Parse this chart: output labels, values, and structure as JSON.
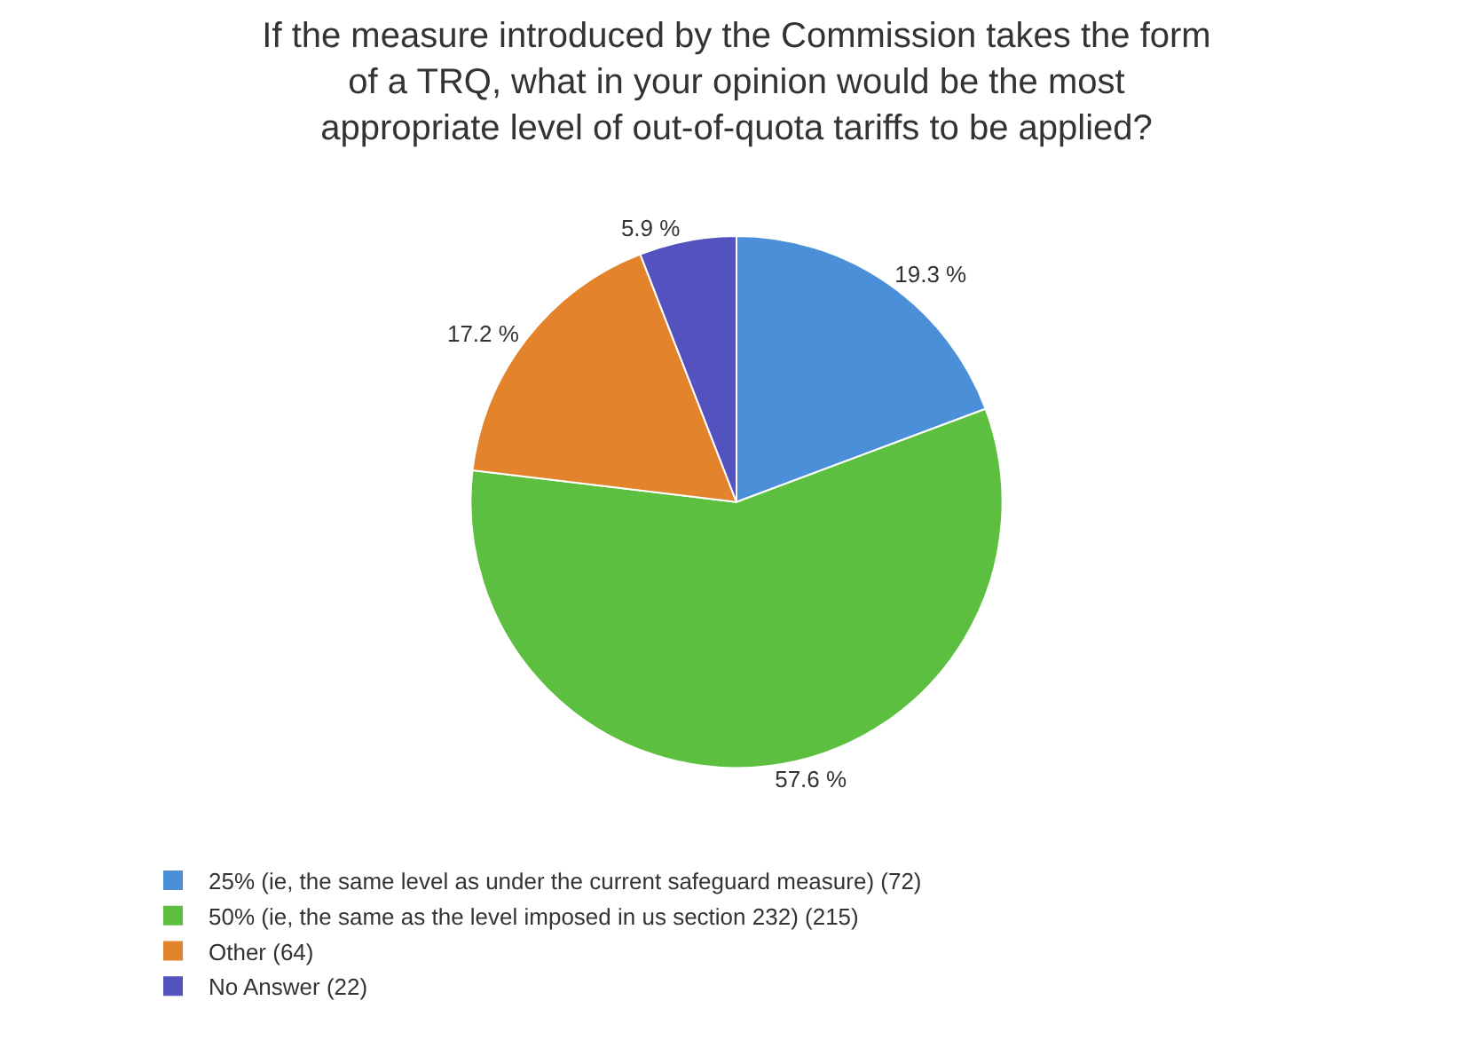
{
  "chart_data": {
    "type": "pie",
    "title": "If the measure introduced by the Commission takes the form\nof a TRQ, what in your opinion would be the most\nappropriate level of out-of-quota tariffs to be applied?",
    "categories": [
      "25% (ie, the same level as under the current safeguard measure) (72)",
      "50% (ie, the same as the level imposed in us section 232) (215)",
      "Other (64)",
      "No Answer (22)"
    ],
    "values": [
      19.3,
      57.6,
      17.2,
      5.9
    ],
    "value_labels": [
      "19.3 %",
      "57.6 %",
      "17.2 %",
      "5.9 %"
    ],
    "colors": [
      "#4a8fd8",
      "#5dbf3f",
      "#e3832b",
      "#5452bf"
    ],
    "legend": "bottom"
  }
}
